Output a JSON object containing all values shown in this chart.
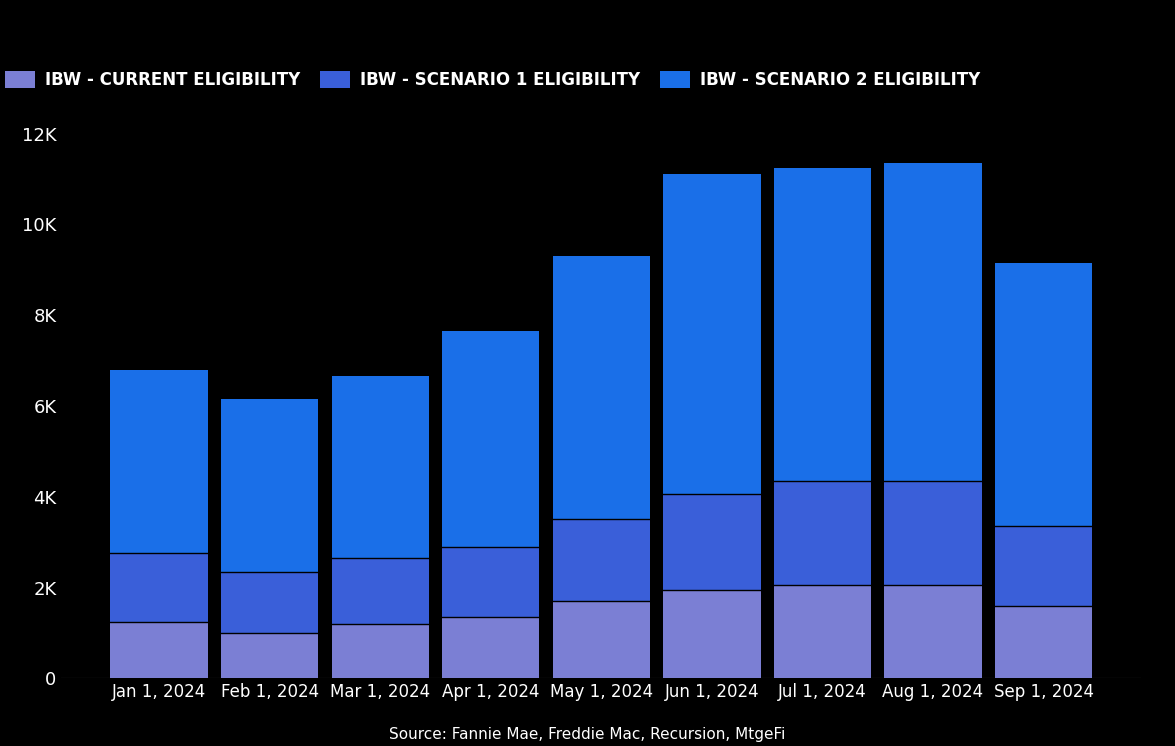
{
  "categories": [
    "Jan 1, 2024",
    "Feb 1, 2024",
    "Mar 1, 2024",
    "Apr 1, 2024",
    "May 1, 2024",
    "Jun 1, 2024",
    "Jul 1, 2024",
    "Aug 1, 2024",
    "Sep 1, 2024"
  ],
  "current_eligibility": [
    1250,
    1000,
    1200,
    1350,
    1700,
    1950,
    2050,
    2050,
    1600
  ],
  "scenario1_eligibility": [
    1500,
    1350,
    1450,
    1550,
    1800,
    2100,
    2300,
    2300,
    1750
  ],
  "scenario2_eligibility": [
    4050,
    3800,
    4000,
    4750,
    5800,
    7050,
    6900,
    7000,
    5800
  ],
  "color_current": "#7b7fd4",
  "color_scenario1": "#3a5fd9",
  "color_scenario2": "#1a6fe8",
  "background_color": "#000000",
  "text_color": "#ffffff",
  "ylim": [
    0,
    12000
  ],
  "yticks": [
    0,
    2000,
    4000,
    6000,
    8000,
    10000,
    12000
  ],
  "ytick_labels": [
    "0",
    "2K",
    "4K",
    "6K",
    "8K",
    "10K",
    "12K"
  ],
  "legend_labels": [
    "IBW - CURRENT ELIGIBILITY",
    "IBW - SCENARIO 1 ELIGIBILITY",
    "IBW - SCENARIO 2 ELIGIBILITY"
  ],
  "source_text": "Source: Fannie Mae, Freddie Mac, Recursion, MtgeFi",
  "bar_width": 0.88,
  "font_family": "DejaVu Sans"
}
